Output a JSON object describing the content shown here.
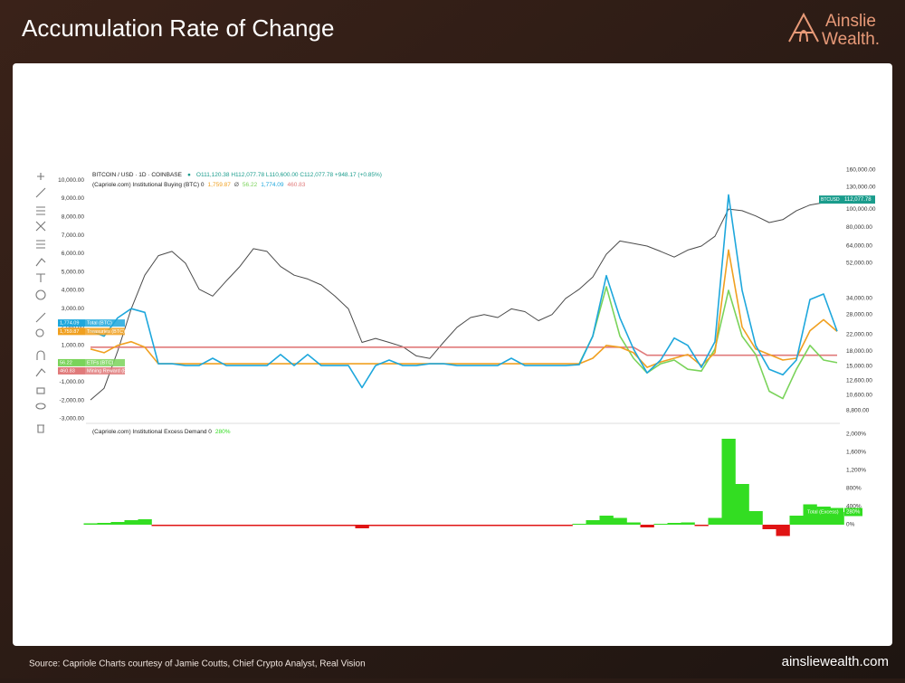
{
  "header": {
    "title": "Accumulation Rate of Change",
    "logo": [
      "Ainslie",
      "Wealth."
    ]
  },
  "footer": {
    "source": "Source: Capriole Charts courtesy of Jamie Coutts, Chief Crypto Analyst, Real Vision",
    "website": "ainsliewealth.com"
  },
  "chart_data": [
    {
      "type": "line",
      "symbol": "BITCOIN / USD · 1D · COINBASE",
      "ohlc": "O111,120.38 H112,077.78 L110,600.00 C112,077.78 +948.17 (+0.85%)",
      "indicator": "(Capriole.com) Institutional Buying (BTC) 0",
      "indicator_separator": "Ø",
      "categories": [
        null,
        null,
        null,
        null,
        null,
        null,
        null,
        null,
        null,
        null,
        null,
        null,
        null,
        null,
        null,
        null,
        null,
        null,
        null,
        null,
        null,
        null,
        null,
        null,
        null,
        null,
        null,
        null,
        null,
        null,
        null,
        null,
        null,
        null,
        null,
        null,
        null,
        null,
        null,
        null,
        null,
        null,
        null,
        null,
        null,
        null,
        null,
        null,
        null,
        null,
        null,
        null,
        null,
        null,
        null,
        null
      ],
      "ylim": [
        -3150,
        10550
      ],
      "yticks": [
        {
          "value": 10000,
          "label": "10,000.00"
        },
        {
          "value": 9000,
          "label": "9,000.00"
        },
        {
          "value": 8000,
          "label": "8,000.00"
        },
        {
          "value": 7000,
          "label": "7,000.00"
        },
        {
          "value": 6000,
          "label": "6,000.00"
        },
        {
          "value": 5000,
          "label": "5,000.00"
        },
        {
          "value": 4000,
          "label": "4,000.00"
        },
        {
          "value": 3000,
          "label": "3,000.00"
        },
        {
          "value": 2000,
          "label": "2,000.00"
        },
        {
          "value": 1000,
          "label": "1,000.00"
        },
        {
          "value": -1000,
          "label": "-1,000.00"
        },
        {
          "value": -2000,
          "label": "-2,000.00"
        },
        {
          "value": -3000,
          "label": "-3,000.00"
        }
      ],
      "y2lim": [
        7700,
        160000
      ],
      "y2scale": "log",
      "y2ticks": [
        {
          "value": 160000,
          "label": "160,000.00"
        },
        {
          "value": 130000,
          "label": "130,000.00"
        },
        {
          "value": 100000,
          "label": "100,000.00"
        },
        {
          "value": 80000,
          "label": "80,000.00"
        },
        {
          "value": 64000,
          "label": "64,000.00"
        },
        {
          "value": 52000,
          "label": "52,000.00"
        },
        {
          "value": 34000,
          "label": "34,000.00"
        },
        {
          "value": 28000,
          "label": "28,000.00"
        },
        {
          "value": 22000,
          "label": "22,000.00"
        },
        {
          "value": 18000,
          "label": "18,000.00"
        },
        {
          "value": 15000,
          "label": "15,000.00"
        },
        {
          "value": 12600,
          "label": "12,600.00"
        },
        {
          "value": 10600,
          "label": "10,600.00"
        },
        {
          "value": 8800,
          "label": "8,800.00"
        }
      ],
      "grid": false,
      "series": [
        {
          "name": "BTCUSD",
          "color": "#4a4a4a",
          "tag_color": "#1a9c8c",
          "axis": "y2",
          "last_label": "112,077.78",
          "values": [
            10000,
            11500,
            18000,
            30000,
            45000,
            57000,
            60000,
            52000,
            38000,
            35000,
            42000,
            50000,
            62000,
            60000,
            50000,
            45000,
            43000,
            40000,
            35000,
            30000,
            20000,
            21000,
            20000,
            19000,
            17000,
            16500,
            20000,
            24000,
            27000,
            28000,
            27000,
            30000,
            29000,
            26000,
            28000,
            34000,
            38000,
            44000,
            58000,
            68000,
            66000,
            64000,
            60000,
            56000,
            61000,
            64000,
            72000,
            100000,
            98000,
            92000,
            85000,
            88000,
            98000,
            105000,
            108000,
            112077.78
          ]
        },
        {
          "name": "Mining Reward (BTC)",
          "color": "#e07a7a",
          "last_label": "460.83",
          "values": [
            900,
            900,
            900,
            900,
            900,
            900,
            900,
            900,
            900,
            900,
            900,
            900,
            900,
            900,
            900,
            900,
            900,
            900,
            900,
            900,
            900,
            900,
            900,
            900,
            900,
            900,
            900,
            900,
            900,
            900,
            900,
            900,
            900,
            900,
            900,
            900,
            900,
            900,
            900,
            900,
            900,
            460,
            460,
            460,
            460,
            460,
            460,
            460,
            460,
            460,
            460,
            460,
            460,
            460,
            460,
            460.83
          ]
        },
        {
          "name": "ETFs (BTC)",
          "color": "#7ad35a",
          "last_label": "56.22",
          "values": [
            null,
            null,
            null,
            null,
            null,
            null,
            null,
            null,
            null,
            null,
            null,
            null,
            null,
            null,
            null,
            null,
            null,
            null,
            null,
            null,
            null,
            null,
            null,
            null,
            null,
            null,
            null,
            null,
            null,
            null,
            null,
            null,
            null,
            null,
            null,
            null,
            0,
            1500,
            4200,
            1500,
            300,
            -500,
            0,
            200,
            -300,
            -400,
            800,
            4000,
            1500,
            500,
            -1500,
            -1900,
            -300,
            1000,
            200,
            56.22
          ]
        },
        {
          "name": "Treasuries (BTC)",
          "color": "#f0a020",
          "last_label": "1,759.87",
          "values": [
            800,
            600,
            1000,
            1200,
            900,
            0,
            0,
            0,
            0,
            0,
            0,
            0,
            0,
            0,
            0,
            0,
            0,
            0,
            0,
            0,
            0,
            0,
            0,
            0,
            0,
            0,
            0,
            0,
            0,
            0,
            0,
            0,
            0,
            0,
            0,
            0,
            0,
            300,
            1000,
            900,
            600,
            -200,
            100,
            300,
            500,
            -100,
            600,
            6200,
            2000,
            800,
            500,
            200,
            300,
            1800,
            2400,
            1759.87
          ]
        },
        {
          "name": "Total (BTC)",
          "color": "#1ea7dc",
          "last_label": "1,774.09",
          "values": [
            1800,
            1500,
            2500,
            3000,
            2800,
            0,
            0,
            -100,
            -100,
            300,
            -100,
            -100,
            -100,
            -100,
            500,
            -100,
            500,
            -100,
            -100,
            -100,
            -1300,
            -100,
            200,
            -100,
            -100,
            0,
            0,
            -100,
            -100,
            -100,
            -100,
            300,
            -100,
            -100,
            -100,
            -100,
            -50,
            1500,
            4800,
            2500,
            800,
            -500,
            200,
            1400,
            1000,
            -200,
            1200,
            9200,
            4000,
            1000,
            -300,
            -600,
            200,
            3500,
            3800,
            1774.09
          ]
        }
      ]
    },
    {
      "type": "bar",
      "indicator": "(Capriole.com) Institutional Excess Demand 0",
      "name": "Total (Excess)",
      "last_label": "280%",
      "positive_color": "#33dd22",
      "negative_color": "#e01414",
      "categories": [
        null,
        null,
        null,
        null,
        null,
        null,
        null,
        null,
        null,
        null,
        null,
        null,
        null,
        null,
        null,
        null,
        null,
        null,
        null,
        null,
        null,
        null,
        null,
        null,
        null,
        null,
        null,
        null,
        null,
        null,
        null,
        null,
        null,
        null,
        null,
        null,
        null,
        null,
        null,
        null,
        null,
        null,
        null,
        null,
        null,
        null,
        null,
        null,
        null,
        null,
        null,
        null,
        null,
        null,
        null,
        null
      ],
      "values": [
        30,
        40,
        60,
        100,
        120,
        -30,
        -30,
        -30,
        -30,
        -30,
        -30,
        -30,
        -30,
        -30,
        -30,
        -30,
        -30,
        -30,
        -30,
        -30,
        -80,
        -30,
        -30,
        -30,
        -30,
        -30,
        -30,
        -30,
        -30,
        -30,
        -30,
        -30,
        -30,
        -30,
        -30,
        -30,
        20,
        100,
        200,
        150,
        50,
        -60,
        20,
        40,
        50,
        -30,
        150,
        1900,
        900,
        300,
        -100,
        -250,
        200,
        450,
        400,
        280
      ],
      "ylim": [
        -400,
        2200
      ],
      "yticks": [
        {
          "value": 2000,
          "label": "2,000%"
        },
        {
          "value": 1600,
          "label": "1,600%"
        },
        {
          "value": 1200,
          "label": "1,200%"
        },
        {
          "value": 800,
          "label": "800%"
        },
        {
          "value": 400,
          "label": "400%"
        },
        {
          "value": 0,
          "label": "0%"
        }
      ],
      "grid": false
    }
  ]
}
